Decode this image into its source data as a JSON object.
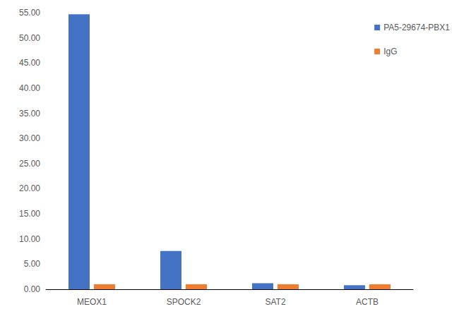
{
  "chart_data": {
    "type": "bar",
    "categories": [
      "MEOX1",
      "SPOCK2",
      "SAT2",
      "ACTB"
    ],
    "series": [
      {
        "name": "PA5-29674-PBX1",
        "color": "#4472c4",
        "values": [
          54.7,
          7.6,
          1.2,
          0.8
        ]
      },
      {
        "name": "IgG",
        "color": "#ed7d31",
        "values": [
          1.0,
          1.0,
          1.0,
          1.0
        ]
      }
    ],
    "ylim": [
      0,
      55
    ],
    "yticks": [
      {
        "value": 0,
        "label": "0.00"
      },
      {
        "value": 5,
        "label": "5.00"
      },
      {
        "value": 10,
        "label": "10.00"
      },
      {
        "value": 15,
        "label": "15.00"
      },
      {
        "value": 20,
        "label": "20.00"
      },
      {
        "value": 25,
        "label": "25.00"
      },
      {
        "value": 30,
        "label": "30.00"
      },
      {
        "value": 35,
        "label": "35.00"
      },
      {
        "value": 40,
        "label": "40.00"
      },
      {
        "value": 45,
        "label": "45.00"
      },
      {
        "value": 50,
        "label": "50.00"
      },
      {
        "value": 55,
        "label": "55.00"
      }
    ],
    "grid": false,
    "legend": "top-right"
  }
}
